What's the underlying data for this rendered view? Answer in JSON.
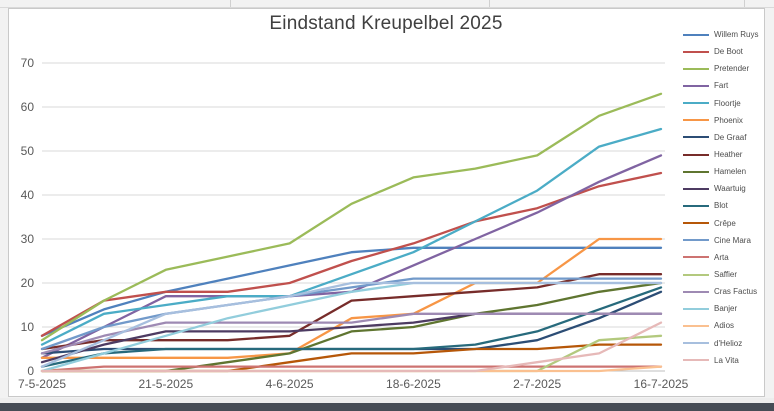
{
  "chart": {
    "title": "Eindstand Kreupelbel 2025"
  },
  "colors": {
    "plot_background": "#ffffff",
    "gridline": "#d9d9d9",
    "frame_border": "#c9c9c9",
    "title_text": "#404040",
    "axis_text": "#595959",
    "window_bottom_bar": "#464c55"
  },
  "chart_data": {
    "type": "line",
    "title": "Eindstand Kreupelbel 2025",
    "ylim": [
      0,
      70
    ],
    "yticks": [
      0,
      10,
      20,
      30,
      40,
      50,
      60,
      70
    ],
    "n_points": 11,
    "x_tick_labels": [
      "7-5-2025",
      "21-5-2025",
      "4-6-2025",
      "18-6-2025",
      "2-7-2025",
      "16-7-2025"
    ],
    "x_tick_point_indices": [
      0,
      2,
      4,
      6,
      8,
      10
    ],
    "grid": true,
    "legend_position": "right",
    "series": [
      {
        "name": "Willem Ruys",
        "color": "#4F81BD",
        "values": [
          8,
          14,
          18,
          21,
          24,
          27,
          28,
          28,
          28,
          28,
          28
        ]
      },
      {
        "name": "De Boot",
        "color": "#C0504D",
        "values": [
          8,
          16,
          18,
          18,
          20,
          25,
          29,
          34,
          37,
          42,
          45
        ]
      },
      {
        "name": "Pretender",
        "color": "#9BBB59",
        "values": [
          7,
          16,
          23,
          26,
          29,
          38,
          44,
          46,
          49,
          58,
          63
        ]
      },
      {
        "name": "Fart",
        "color": "#8064A2",
        "values": [
          3,
          10,
          17,
          17,
          17,
          18,
          24,
          30,
          36,
          43,
          49
        ]
      },
      {
        "name": "Floortje",
        "color": "#4BACC6",
        "values": [
          6,
          13,
          15,
          17,
          17,
          22,
          27,
          34,
          41,
          51,
          55
        ]
      },
      {
        "name": "Phoenix",
        "color": "#F79646",
        "values": [
          3,
          3,
          3,
          3,
          4,
          12,
          13,
          20,
          20,
          30,
          30
        ]
      },
      {
        "name": "De Graaf",
        "color": "#2C4D75",
        "values": [
          4,
          5,
          5,
          5,
          5,
          5,
          5,
          5,
          7,
          12,
          18
        ]
      },
      {
        "name": "Heather",
        "color": "#772C2A",
        "values": [
          5,
          7,
          7,
          7,
          8,
          16,
          17,
          18,
          19,
          22,
          22
        ]
      },
      {
        "name": "Hamelen",
        "color": "#5F7530",
        "values": [
          0,
          0,
          0,
          2,
          4,
          9,
          10,
          13,
          15,
          18,
          20
        ]
      },
      {
        "name": "Waartuig",
        "color": "#4D3B62",
        "values": [
          2,
          6,
          9,
          9,
          9,
          10,
          11,
          13,
          13,
          13,
          13
        ]
      },
      {
        "name": "Blot",
        "color": "#276A7C",
        "values": [
          1,
          4,
          5,
          5,
          5,
          5,
          5,
          6,
          9,
          14,
          19
        ]
      },
      {
        "name": "Crêpe",
        "color": "#B65708",
        "values": [
          0,
          0,
          0,
          0,
          2,
          4,
          4,
          5,
          5,
          6,
          6
        ]
      },
      {
        "name": "Cine Mara",
        "color": "#729ACA",
        "values": [
          5,
          10,
          13,
          15,
          17,
          19,
          21,
          21,
          21,
          21,
          21
        ]
      },
      {
        "name": "Arta",
        "color": "#CD7371",
        "values": [
          0,
          1,
          1,
          1,
          1,
          1,
          1,
          1,
          1,
          1,
          1
        ]
      },
      {
        "name": "Saffier",
        "color": "#B3C97E",
        "values": [
          0,
          0,
          0,
          0,
          0,
          0,
          0,
          0,
          0,
          7,
          8
        ]
      },
      {
        "name": "Cras Factus",
        "color": "#9E8AB3",
        "values": [
          4,
          8,
          11,
          11,
          11,
          11,
          13,
          13,
          13,
          13,
          13
        ]
      },
      {
        "name": "Banjer",
        "color": "#92CDDC",
        "values": [
          0,
          4,
          8,
          12,
          15,
          18,
          20,
          20,
          20,
          20,
          20
        ]
      },
      {
        "name": "Adios",
        "color": "#FAC090",
        "values": [
          0,
          0,
          0,
          0,
          0,
          0,
          0,
          0,
          0,
          0,
          1
        ]
      },
      {
        "name": "d'Helioz",
        "color": "#A7BFDE",
        "values": [
          1,
          7,
          13,
          15,
          17,
          20,
          20,
          20,
          20,
          20,
          20
        ]
      },
      {
        "name": "La Vita",
        "color": "#E6B9B8",
        "values": [
          0,
          0,
          0,
          0,
          0,
          0,
          0,
          0,
          2,
          4,
          11
        ]
      }
    ]
  }
}
